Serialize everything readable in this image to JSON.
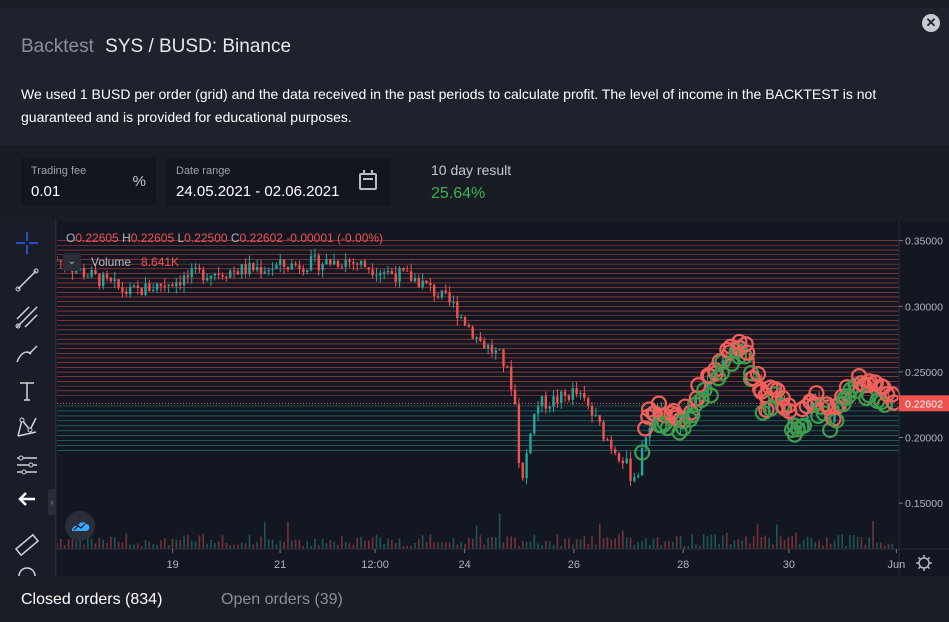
{
  "modal": {
    "title_prefix": "Backtest",
    "title": "SYS / BUSD: Binance",
    "description": "We used 1 BUSD per order (grid) and the data received in the past periods to calculate profit. The level of income in the BACKTEST is not guaranteed and is provided for educational purposes.",
    "close_icon": "close-icon"
  },
  "controls": {
    "trading_fee": {
      "label": "Trading fee",
      "value": "0.01",
      "suffix": "%"
    },
    "date_range": {
      "label": "Date range",
      "value": "24.05.2021 - 02.06.2021",
      "icon": "calendar-icon"
    },
    "result": {
      "label": "10 day result",
      "value": "25.64%",
      "color": "#3bb54a"
    }
  },
  "toolbar": {
    "tools": [
      "crosshair-icon",
      "trend-line-icon",
      "pitchfork-icon",
      "brush-icon",
      "text-icon",
      "pattern-icon",
      "prediction-icon",
      "back-arrow-icon",
      "ruler-icon",
      "magnet-icon"
    ]
  },
  "legend": {
    "o_key": "O",
    "o": "0.22605",
    "h_key": "H",
    "h": "0.22605",
    "l_key": "L",
    "l": "0.22500",
    "c_key": "C",
    "c": "0.22602",
    "change": "-0.00001 (-0.00%)",
    "volume_label": "Volume",
    "volume_value": "8.641K"
  },
  "chart_data": {
    "type": "candlestick",
    "price_axis_ticks": [
      "0.35000",
      "0.30000",
      "0.25000",
      "0.20000",
      "0.15000"
    ],
    "price_ticks_values": [
      0.35,
      0.3,
      0.25,
      0.2,
      0.15
    ],
    "current_price_label": "0.22602",
    "current_price": 0.22602,
    "time_axis_ticks": [
      "19",
      "21",
      "12:00",
      "24",
      "26",
      "28",
      "30",
      "Jun"
    ],
    "ylim": [
      0.115,
      0.365
    ],
    "up_color": "#26a69a",
    "down_color": "#ef5350",
    "grid_sell_levels_range": [
      0.232,
      0.35
    ],
    "grid_buy_levels_range": [
      0.19,
      0.224
    ],
    "close_path": [
      [
        0,
        0.335
      ],
      [
        3,
        0.31
      ],
      [
        6,
        0.325
      ],
      [
        9,
        0.33
      ],
      [
        12,
        0.335
      ],
      [
        15,
        0.32
      ],
      [
        16.5,
        0.3
      ],
      [
        17.5,
        0.275
      ],
      [
        18.5,
        0.26
      ],
      [
        19,
        0.235
      ],
      [
        19.3,
        0.16
      ],
      [
        19.7,
        0.21
      ],
      [
        20,
        0.225
      ],
      [
        21,
        0.23
      ],
      [
        21.5,
        0.235
      ],
      [
        22,
        0.225
      ],
      [
        22.5,
        0.21
      ],
      [
        23,
        0.195
      ],
      [
        23.5,
        0.185
      ],
      [
        23.9,
        0.17
      ],
      [
        24.2,
        0.175
      ],
      [
        24.5,
        0.205
      ],
      [
        24.8,
        0.218
      ],
      [
        25.3,
        0.215
      ],
      [
        25.8,
        0.21
      ],
      [
        26.3,
        0.22
      ],
      [
        26.8,
        0.235
      ],
      [
        27.3,
        0.245
      ],
      [
        27.8,
        0.26
      ],
      [
        28.2,
        0.27
      ],
      [
        28.6,
        0.265
      ],
      [
        29,
        0.245
      ],
      [
        29.4,
        0.22
      ],
      [
        29.8,
        0.235
      ],
      [
        30.2,
        0.225
      ],
      [
        30.6,
        0.21
      ],
      [
        31,
        0.215
      ],
      [
        31.4,
        0.225
      ],
      [
        31.8,
        0.225
      ],
      [
        32.2,
        0.21
      ],
      [
        32.6,
        0.228
      ],
      [
        33,
        0.238
      ],
      [
        33.4,
        0.24
      ],
      [
        33.8,
        0.235
      ],
      [
        34.2,
        0.232
      ],
      [
        34.6,
        0.228
      ],
      [
        34.8,
        0.226
      ]
    ]
  },
  "tabs": {
    "closed": "Closed orders (834)",
    "open": "Open orders (39)"
  }
}
